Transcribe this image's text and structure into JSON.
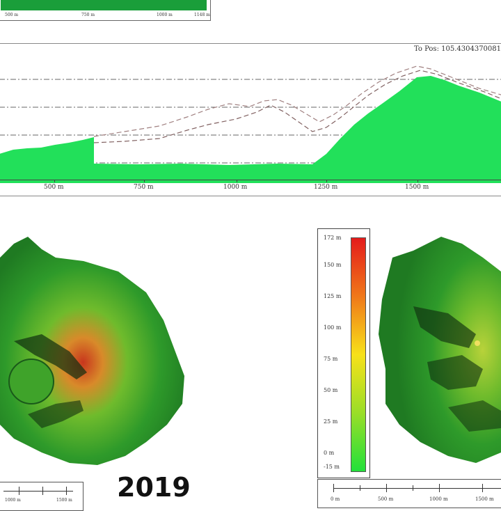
{
  "top_inset": {
    "ticks": [
      "500 m",
      "750 m",
      "1000 m",
      "1148 m"
    ]
  },
  "profile": {
    "to_pos_text": "To Pos: 105.4304370081,",
    "x_ticks": [
      "500 m",
      "750 m",
      "1000 m",
      "1250 m",
      "1500 m"
    ]
  },
  "colorbar": {
    "labels": [
      "172 m",
      "150 m",
      "125 m",
      "100 m",
      "75 m",
      "50 m",
      "25 m",
      "0 m",
      "-15 m"
    ],
    "colors": {
      "top": "#e41b1b",
      "mid": "#f7e11a",
      "bottom": "#22e03a"
    }
  },
  "left_map": {
    "scale_labels": [
      "1000 m",
      "1500 m"
    ]
  },
  "right_map": {
    "scale_labels": [
      "0 m",
      "500 m",
      "1000 m",
      "1500 m"
    ]
  },
  "year_label": "2019",
  "colors": {
    "elevation_fill": "#22e05a",
    "grid": "#666666"
  }
}
